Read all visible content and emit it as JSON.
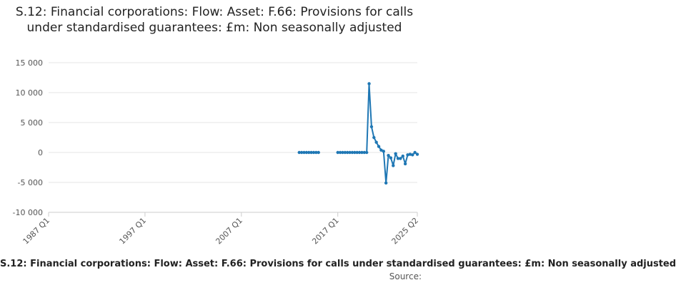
{
  "title": "S.12: Financial corporations: Flow: Asset: F.66: Provisions for calls under standardised guarantees: £m: Non seasonally adjusted",
  "footer": "S.12: Financial corporations: Flow: Asset: F.66: Provisions for calls under standardised guarantees: £m: Non seasonally adjusted",
  "source_label": "Source:",
  "chart_data": {
    "type": "line",
    "title": "S.12: Financial corporations: Flow: Asset: F.66: Provisions for calls under standardised guarantees: £m: Non seasonally adjusted",
    "xlabel": "",
    "ylabel": "",
    "ylim": [
      -10000,
      15000
    ],
    "yticks": [
      15000,
      10000,
      5000,
      0,
      -5000,
      -10000
    ],
    "ytick_labels": [
      "15 000",
      "10 000",
      "5 000",
      "0",
      "-5 000",
      "-10 000"
    ],
    "xlim": [
      "1987 Q1",
      "2025 Q2"
    ],
    "xtick_labels": [
      "1987 Q1",
      "1997 Q1",
      "2007 Q1",
      "2017 Q1",
      "2025 Q2"
    ],
    "grid": "horizontal",
    "line_color": "#1f77b4",
    "series": [
      {
        "segments": [
          [
            [
              "2013 Q1",
              0
            ],
            [
              "2013 Q2",
              0
            ],
            [
              "2013 Q3",
              0
            ],
            [
              "2013 Q4",
              0
            ],
            [
              "2014 Q1",
              0
            ],
            [
              "2014 Q2",
              0
            ],
            [
              "2014 Q3",
              0
            ],
            [
              "2014 Q4",
              0
            ],
            [
              "2015 Q1",
              0
            ]
          ],
          [
            [
              "2017 Q1",
              0
            ],
            [
              "2017 Q2",
              0
            ],
            [
              "2017 Q3",
              0
            ],
            [
              "2017 Q4",
              0
            ],
            [
              "2018 Q1",
              0
            ],
            [
              "2018 Q2",
              0
            ],
            [
              "2018 Q3",
              0
            ],
            [
              "2018 Q4",
              0
            ],
            [
              "2019 Q1",
              0
            ],
            [
              "2019 Q2",
              0
            ],
            [
              "2019 Q3",
              0
            ],
            [
              "2019 Q4",
              0
            ],
            [
              "2020 Q1",
              0
            ],
            [
              "2020 Q2",
              11500
            ],
            [
              "2020 Q3",
              4300
            ],
            [
              "2020 Q4",
              2500
            ],
            [
              "2021 Q1",
              1700
            ],
            [
              "2021 Q2",
              1000
            ],
            [
              "2021 Q3",
              400
            ],
            [
              "2021 Q4",
              200
            ],
            [
              "2022 Q1",
              -5100
            ],
            [
              "2022 Q2",
              -500
            ],
            [
              "2022 Q3",
              -900
            ],
            [
              "2022 Q4",
              -2200
            ],
            [
              "2023 Q1",
              -200
            ],
            [
              "2023 Q2",
              -1000
            ],
            [
              "2023 Q3",
              -1000
            ],
            [
              "2023 Q4",
              -600
            ],
            [
              "2024 Q1",
              -1900
            ],
            [
              "2024 Q2",
              -400
            ],
            [
              "2024 Q3",
              -300
            ],
            [
              "2024 Q4",
              -400
            ],
            [
              "2025 Q1",
              0
            ],
            [
              "2025 Q2",
              -300
            ]
          ]
        ]
      }
    ]
  }
}
